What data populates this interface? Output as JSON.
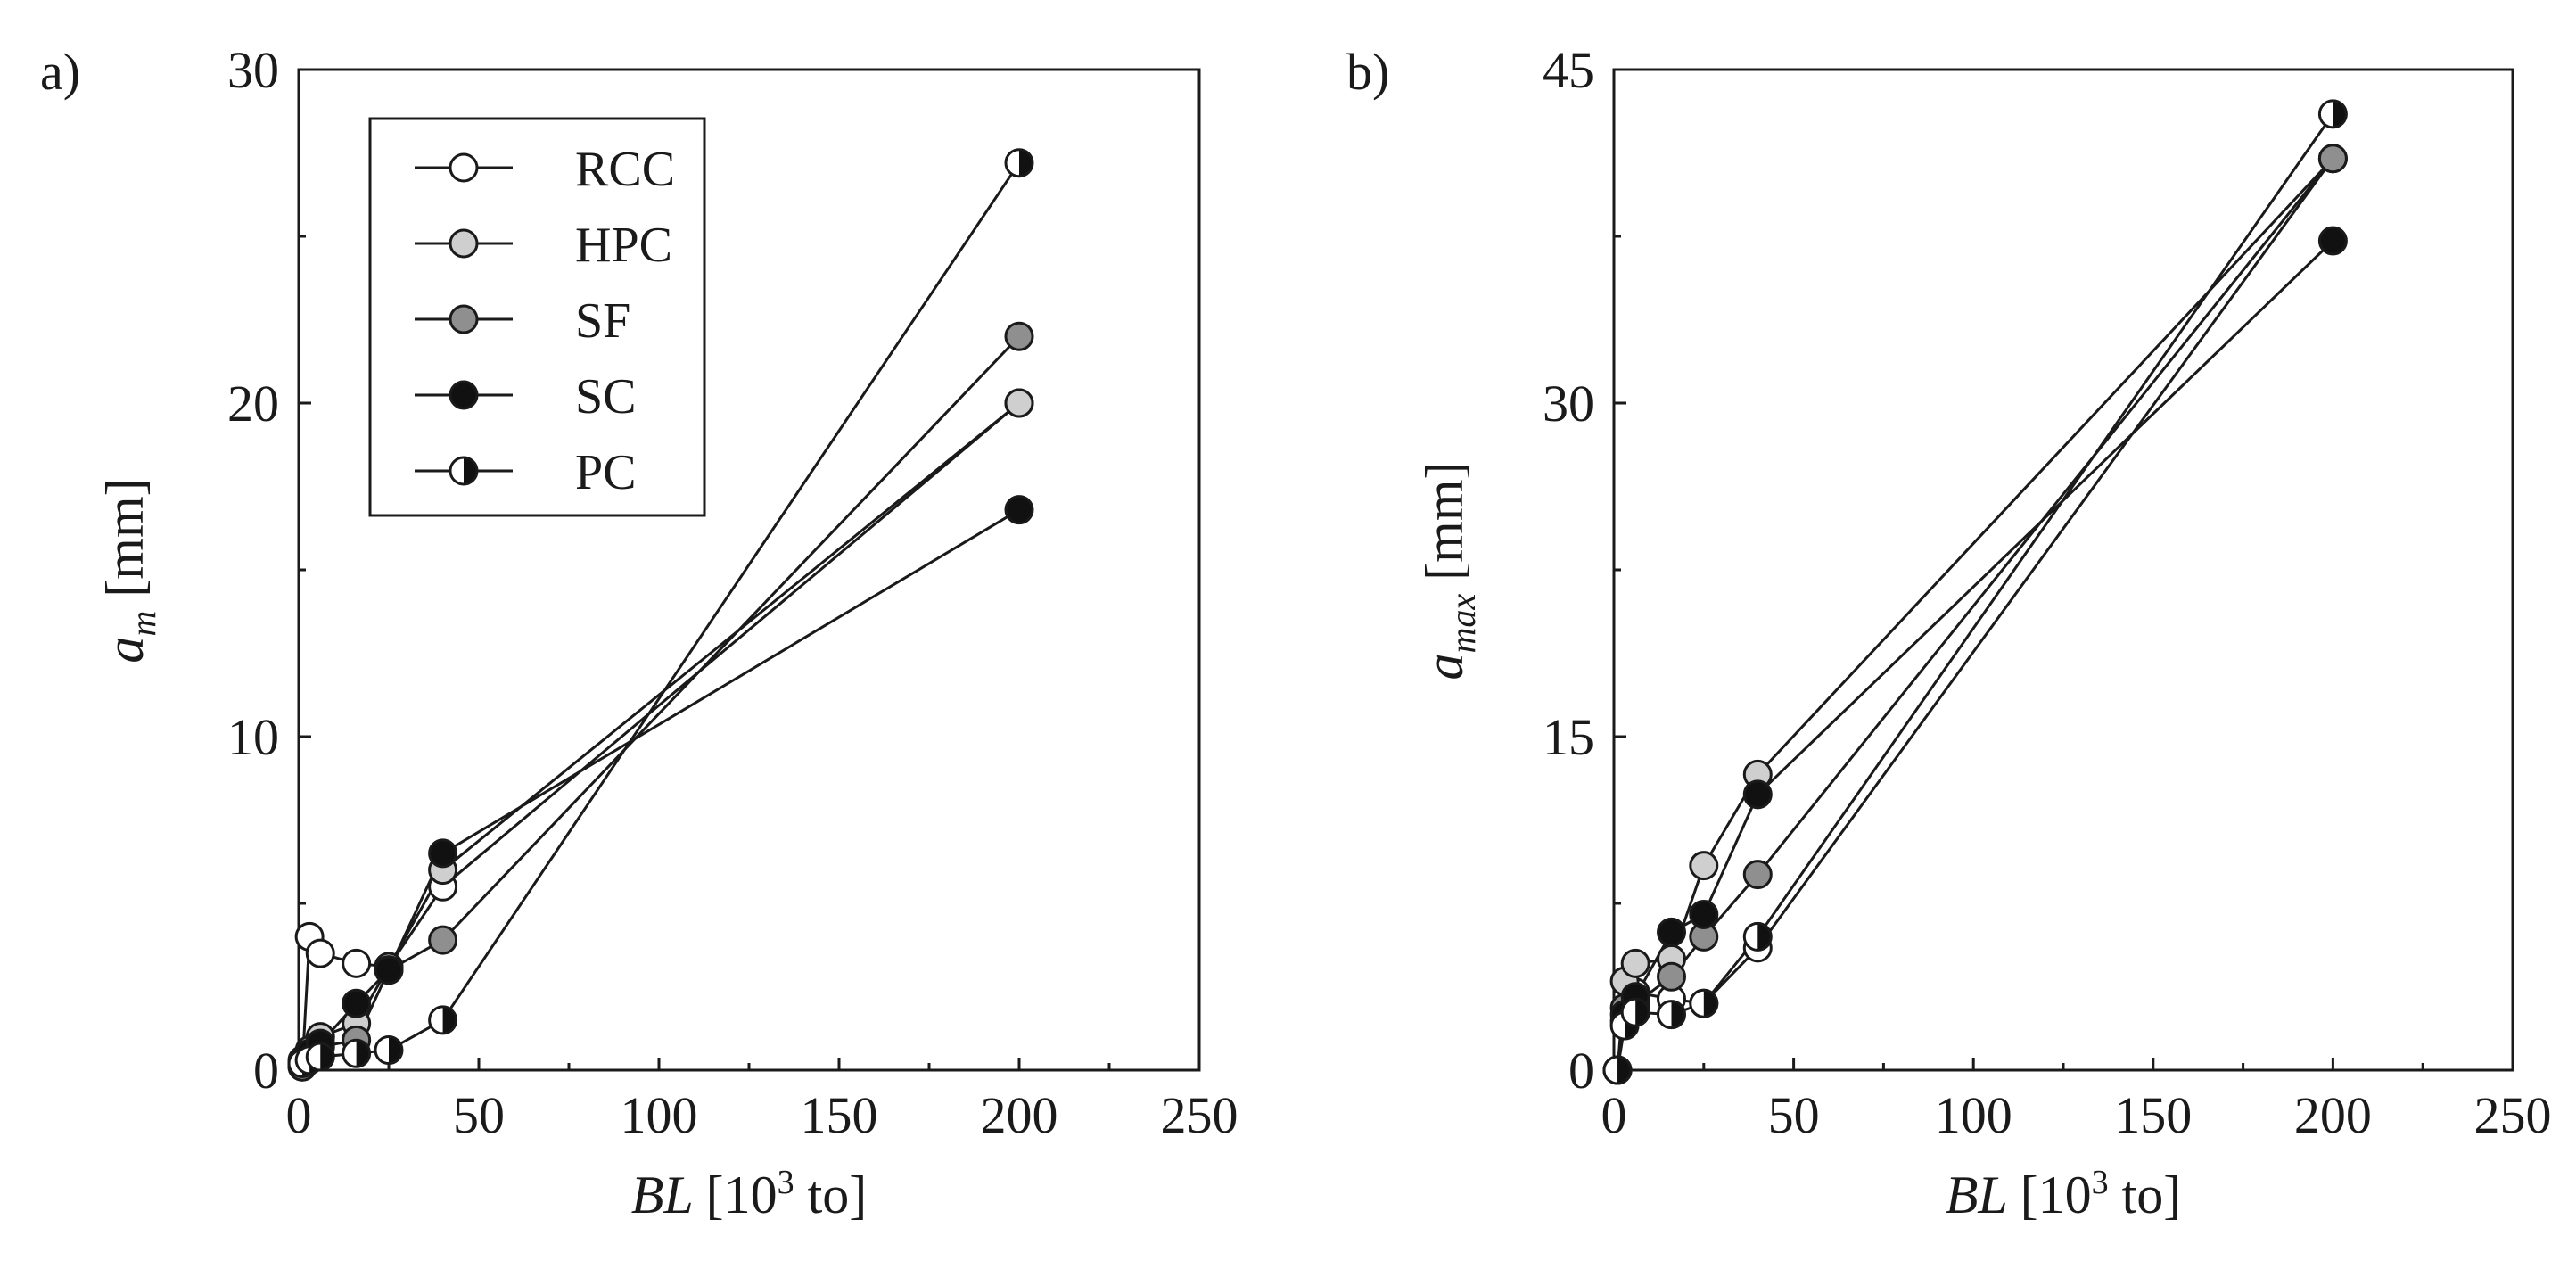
{
  "chart_data": [
    {
      "type": "line",
      "panel_label": "a)",
      "xlabel": {
        "italic": "BL",
        "rest_pre": "[10",
        "sup": "3",
        "rest_post": " to]"
      },
      "ylabel": {
        "italic": "a",
        "sub": "m",
        "rest": "[mm]"
      },
      "xlim": [
        0,
        250
      ],
      "ylim": [
        0,
        30
      ],
      "xticks": [
        0,
        50,
        100,
        150,
        200,
        250
      ],
      "yticks": [
        0,
        10,
        20,
        30
      ],
      "legend_position": "top-left",
      "series": [
        {
          "name": "RCC",
          "marker": "open",
          "x": [
            1,
            3,
            6,
            16,
            25,
            40,
            200
          ],
          "y": [
            0.1,
            4.0,
            3.5,
            3.2,
            3.1,
            5.5,
            20.0
          ]
        },
        {
          "name": "HPC",
          "marker": "light",
          "x": [
            1,
            3,
            6,
            16,
            25,
            40,
            200
          ],
          "y": [
            0.2,
            0.6,
            1.0,
            1.4,
            3.1,
            6.0,
            20.0
          ]
        },
        {
          "name": "SF",
          "marker": "gray",
          "x": [
            1,
            3,
            6,
            16,
            25,
            40,
            200
          ],
          "y": [
            0.1,
            0.4,
            0.7,
            0.9,
            3.0,
            3.9,
            22.0
          ]
        },
        {
          "name": "SC",
          "marker": "filled",
          "x": [
            1,
            3,
            6,
            16,
            25,
            40,
            200
          ],
          "y": [
            0.3,
            0.5,
            0.8,
            2.0,
            3.0,
            6.5,
            16.8
          ]
        },
        {
          "name": "PC",
          "marker": "half",
          "x": [
            1,
            3,
            6,
            16,
            25,
            40,
            200
          ],
          "y": [
            0.2,
            0.3,
            0.4,
            0.5,
            0.6,
            1.5,
            27.2
          ]
        }
      ]
    },
    {
      "type": "line",
      "panel_label": "b)",
      "xlabel": {
        "italic": "BL",
        "rest_pre": "[10",
        "sup": "3",
        "rest_post": " to]"
      },
      "ylabel": {
        "italic": "a",
        "sub": "max",
        "rest": "[mm]"
      },
      "xlim": [
        0,
        250
      ],
      "ylim": [
        0,
        45
      ],
      "xticks": [
        0,
        50,
        100,
        150,
        200,
        250
      ],
      "yticks": [
        0,
        15,
        30,
        45
      ],
      "series": [
        {
          "name": "RCC",
          "marker": "open",
          "x": [
            1,
            3,
            6,
            16,
            25,
            40,
            200
          ],
          "y": [
            0.0,
            2.2,
            3.5,
            3.2,
            3.0,
            5.5,
            41.0
          ]
        },
        {
          "name": "HPC",
          "marker": "light",
          "x": [
            1,
            3,
            6,
            16,
            25,
            40,
            200
          ],
          "y": [
            0.0,
            4.0,
            4.8,
            5.0,
            9.2,
            13.3,
            41.0
          ]
        },
        {
          "name": "SF",
          "marker": "gray",
          "x": [
            1,
            3,
            6,
            16,
            25,
            40,
            200
          ],
          "y": [
            0.0,
            2.8,
            3.0,
            4.2,
            6.0,
            8.8,
            41.0
          ]
        },
        {
          "name": "SC",
          "marker": "filled",
          "x": [
            1,
            3,
            6,
            16,
            25,
            40,
            200
          ],
          "y": [
            0.0,
            2.5,
            3.3,
            6.2,
            7.0,
            12.4,
            37.3
          ]
        },
        {
          "name": "PC",
          "marker": "half",
          "x": [
            1,
            3,
            6,
            16,
            25,
            40,
            200
          ],
          "y": [
            0.0,
            2.0,
            2.6,
            2.5,
            3.0,
            6.0,
            43.0
          ]
        }
      ]
    }
  ],
  "colors": {
    "ink": "#1a1a1a",
    "open": "#ffffff",
    "light": "#cfcfcf",
    "gray": "#8f8f8f",
    "filled": "#111111"
  }
}
